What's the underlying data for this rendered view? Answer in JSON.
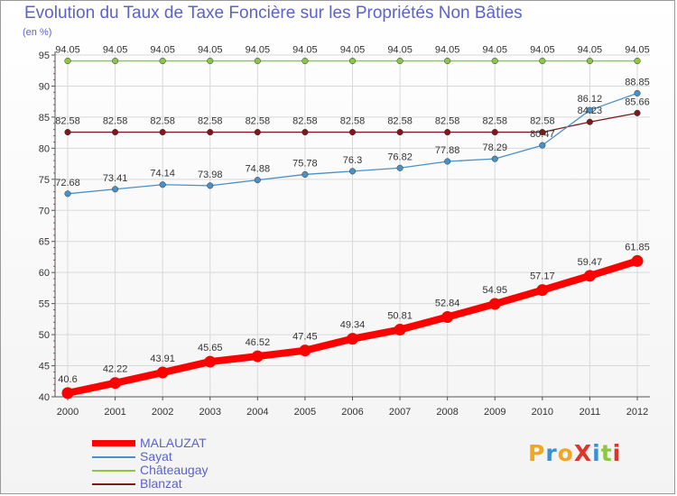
{
  "title": "Evolution du Taux de Taxe Foncière sur les Propriétés Non Bâties",
  "subtitle": "(en %)",
  "logo": "ProXiti",
  "colors": {
    "title": "#5b63c8",
    "axis": "#555555",
    "grid": "#d9d9d9",
    "label": "#333333",
    "logo_letters": [
      "#f4a621",
      "#3a8fd6",
      "#f4a621",
      "#e0342a",
      "#3a8fd6",
      "#8dc63f",
      "#e0342a"
    ]
  },
  "chart_data": {
    "type": "line",
    "title": "Evolution du Taux de Taxe Foncière sur les Propriétés Non Bâties",
    "ylabel": "(en %)",
    "xlabel": "",
    "x": [
      "2000",
      "2001",
      "2002",
      "2003",
      "2004",
      "2005",
      "2006",
      "2007",
      "2008",
      "2009",
      "2010",
      "2011",
      "2012"
    ],
    "ylim": [
      40,
      95
    ],
    "yticks": [
      "40",
      "45",
      "50",
      "55",
      "60",
      "65",
      "70",
      "75",
      "80",
      "85",
      "90",
      "95"
    ],
    "grid": true,
    "legend_position": "bottom-left",
    "series": [
      {
        "name": "MALAUZAT",
        "color": "#ff0000",
        "values": [
          40.6,
          42.22,
          43.91,
          45.65,
          46.52,
          47.45,
          49.34,
          50.81,
          52.84,
          54.95,
          57.17,
          59.47,
          61.85
        ],
        "labels": [
          "40.6",
          "42.22",
          "43.91",
          "45.65",
          "46.52",
          "47.45",
          "49.34",
          "50.81",
          "52.84",
          "54.95",
          "57.17",
          "59.47",
          "61.85"
        ]
      },
      {
        "name": "Sayat",
        "color": "#4a90c8",
        "values": [
          72.68,
          73.41,
          74.14,
          73.98,
          74.88,
          75.78,
          76.3,
          76.82,
          77.88,
          78.29,
          80.47,
          86.12,
          88.85
        ],
        "labels": [
          "72.68",
          "73.41",
          "74.14",
          "73.98",
          "74.88",
          "75.78",
          "76.3",
          "76.82",
          "77.88",
          "78.29",
          "80.47",
          "86.12",
          "88.85"
        ]
      },
      {
        "name": "Châteaugay",
        "color": "#8dc63f",
        "values": [
          94.05,
          94.05,
          94.05,
          94.05,
          94.05,
          94.05,
          94.05,
          94.05,
          94.05,
          94.05,
          94.05,
          94.05,
          94.05
        ],
        "labels": [
          "94.05",
          "94.05",
          "94.05",
          "94.05",
          "94.05",
          "94.05",
          "94.05",
          "94.05",
          "94.05",
          "94.05",
          "94.05",
          "94.05",
          "94.05"
        ]
      },
      {
        "name": "Blanzat",
        "color": "#7b1a1a",
        "values": [
          82.58,
          82.58,
          82.58,
          82.58,
          82.58,
          82.58,
          82.58,
          82.58,
          82.58,
          82.58,
          82.58,
          84.23,
          85.66
        ],
        "labels": [
          "82.58",
          "82.58",
          "82.58",
          "82.58",
          "82.58",
          "82.58",
          "82.58",
          "82.58",
          "82.58",
          "82.58",
          "82.58",
          "84.23",
          "85.66"
        ]
      }
    ]
  }
}
